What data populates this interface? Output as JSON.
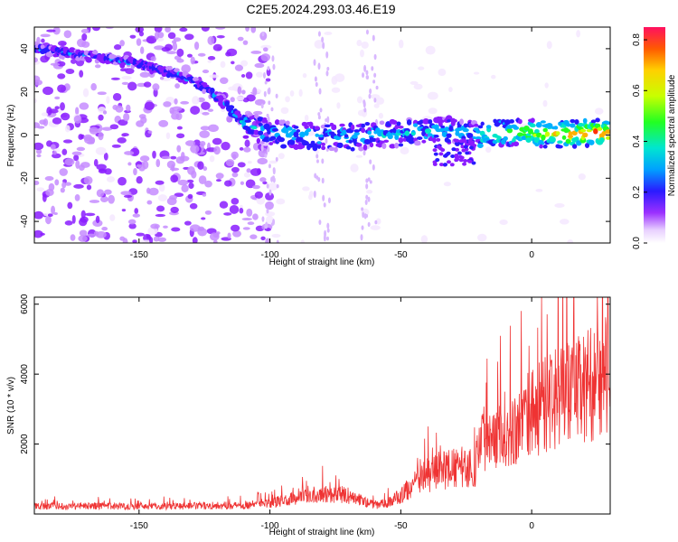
{
  "title": "C2E5.2024.293.03.46.E19",
  "chart_data": [
    {
      "type": "heatmap",
      "xlabel": "Height of straight line (km)",
      "ylabel": "Frequency (Hz)",
      "xlim": [
        -190,
        30
      ],
      "ylim": [
        -50,
        50
      ],
      "x_ticks": [
        -150,
        -100,
        -50,
        0
      ],
      "y_ticks": [
        -40,
        -20,
        0,
        20,
        40
      ],
      "colorbar": {
        "label": "Normalized spectral amplitude",
        "range": [
          0,
          0.85
        ],
        "ticks": [
          0,
          0.2,
          0.4,
          0.6,
          0.8
        ]
      },
      "ridge": {
        "x": [
          -190,
          -165,
          -150,
          -135,
          -125,
          -115,
          -110,
          -100,
          -90,
          -80,
          -70,
          -60,
          -50,
          -40,
          -30,
          -25,
          -20,
          -10,
          0,
          10,
          20,
          30
        ],
        "y": [
          40,
          36,
          33,
          28,
          22,
          12,
          5,
          1,
          0,
          -1,
          -1,
          0,
          1,
          2,
          2,
          1,
          0,
          1,
          1,
          0,
          1,
          1
        ]
      }
    },
    {
      "type": "line",
      "xlabel": "Height of straight line (km)",
      "ylabel": "SNR (10 * v/v)",
      "xlim": [
        -190,
        30
      ],
      "ylim": [
        0,
        6200
      ],
      "x_ticks": [
        -150,
        -100,
        -50,
        0
      ],
      "y_ticks": [
        2000,
        4000,
        6000
      ],
      "color": "#ef3333",
      "envelope": {
        "x": [
          -190,
          -170,
          -150,
          -130,
          -110,
          -100,
          -90,
          -80,
          -70,
          -60,
          -55,
          -50,
          -45,
          -40,
          -35,
          -30,
          -25,
          -22,
          -20,
          -15,
          -10,
          -5,
          0,
          5,
          10,
          15,
          20,
          25,
          30
        ],
        "y": [
          220,
          230,
          220,
          230,
          250,
          300,
          450,
          600,
          520,
          250,
          320,
          520,
          850,
          1100,
          1250,
          1300,
          1350,
          1150,
          2100,
          2400,
          2300,
          2500,
          2900,
          3100,
          3300,
          3450,
          3600,
          3850,
          4050
        ]
      }
    }
  ]
}
